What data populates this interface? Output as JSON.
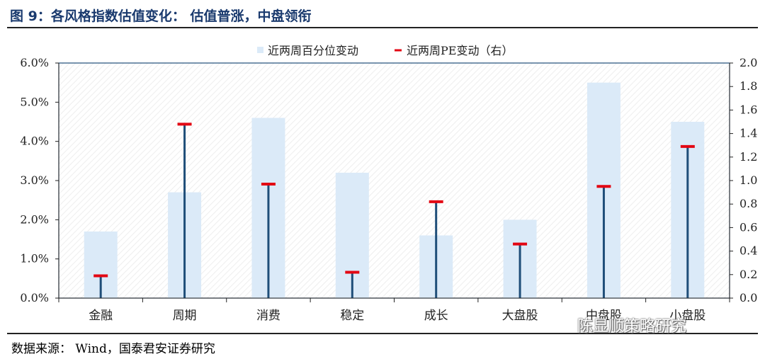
{
  "title": "图 9：各风格指数估值变化：   估值普涨，中盘领衔",
  "source": "数据来源：  Wind，国泰君安证券研究",
  "watermark": "陈显顺策略研究",
  "colors": {
    "bar": "#dbeaf8",
    "stem": "#1f4e79",
    "cap": "#e30613",
    "plot_border": "#1f4e79"
  },
  "chart_data": {
    "type": "bar",
    "categories": [
      "金融",
      "周期",
      "消费",
      "稳定",
      "成长",
      "大盘股",
      "中盘股",
      "小盘股"
    ],
    "series": [
      {
        "name": "近两周百分位变动",
        "type": "bar",
        "axis": "left",
        "values": [
          0.017,
          0.027,
          0.046,
          0.032,
          0.016,
          0.02,
          0.055,
          0.045
        ]
      },
      {
        "name": "近两周PE变动（右）",
        "type": "pin",
        "axis": "right",
        "values": [
          0.19,
          1.48,
          0.97,
          0.22,
          0.82,
          0.46,
          0.95,
          1.29
        ]
      }
    ],
    "ylim": [
      0,
      0.06
    ],
    "y2lim": [
      0,
      2.0
    ],
    "yticks": [
      "0.0%",
      "1.0%",
      "2.0%",
      "3.0%",
      "4.0%",
      "5.0%",
      "6.0%"
    ],
    "y2ticks": [
      "0.0",
      "0.2",
      "0.4",
      "0.6",
      "0.8",
      "1.0",
      "1.2",
      "1.4",
      "1.6",
      "1.8",
      "2.0"
    ],
    "legend": "top-center",
    "grid": false
  }
}
